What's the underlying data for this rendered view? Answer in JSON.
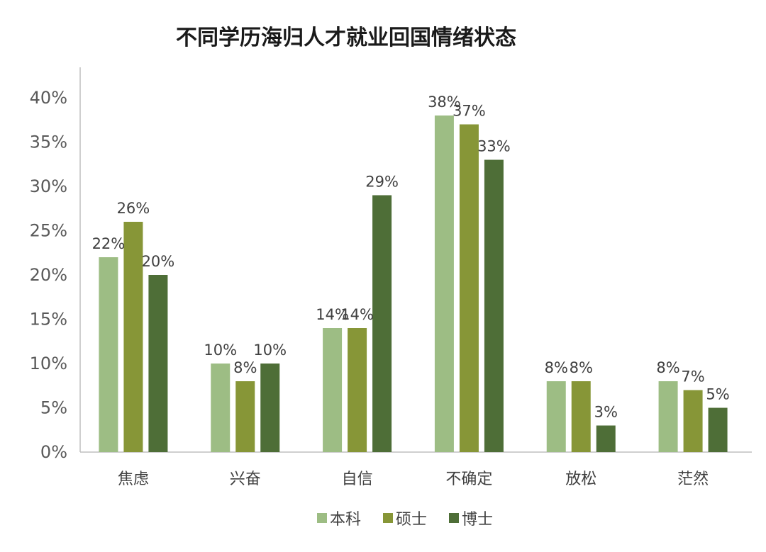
{
  "chart_data": {
    "type": "bar",
    "title": "不同学历海归人才就业回国情绪状态",
    "xlabel": "",
    "ylabel": "",
    "categories": [
      "焦虑",
      "兴奋",
      "自信",
      "不确定",
      "放松",
      "茫然"
    ],
    "series": [
      {
        "name": "本科",
        "color": "#9dbd84",
        "values": [
          22,
          10,
          14,
          38,
          8,
          8
        ]
      },
      {
        "name": "硕士",
        "color": "#879637",
        "values": [
          26,
          8,
          14,
          37,
          8,
          7
        ]
      },
      {
        "name": "博士",
        "color": "#4e6e37",
        "values": [
          20,
          10,
          29,
          33,
          3,
          5
        ]
      }
    ],
    "ylim": [
      0,
      40
    ],
    "yticks": [
      "0%",
      "5%",
      "10%",
      "15%",
      "20%",
      "25%",
      "30%",
      "35%",
      "40%"
    ],
    "value_suffix": "%",
    "grid": false,
    "legend": "bottom"
  }
}
